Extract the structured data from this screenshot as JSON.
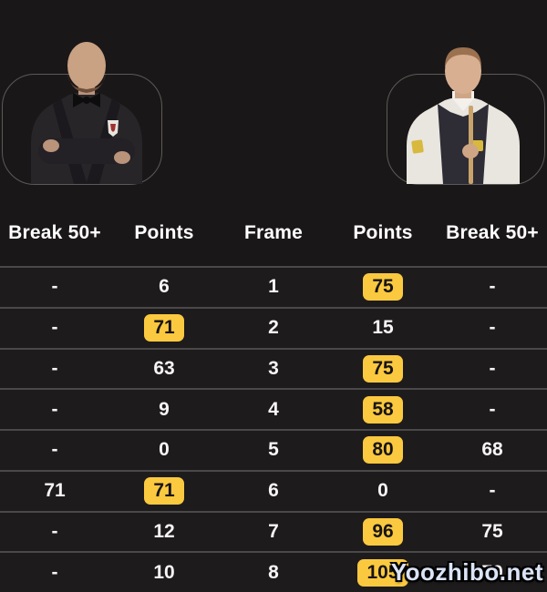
{
  "players": {
    "left_photo_icon": "player-dark-suit-arms-crossed-photo",
    "right_photo_icon": "player-white-shirt-holding-cue-photo"
  },
  "table": {
    "headers": [
      "Break 50+",
      "Points",
      "Frame",
      "Points",
      "Break 50+"
    ],
    "rows": [
      {
        "left_break": "-",
        "left_points": "6",
        "frame": "1",
        "right_points": "75",
        "right_break": "-",
        "winner": "right"
      },
      {
        "left_break": "-",
        "left_points": "71",
        "frame": "2",
        "right_points": "15",
        "right_break": "-",
        "winner": "left"
      },
      {
        "left_break": "-",
        "left_points": "63",
        "frame": "3",
        "right_points": "75",
        "right_break": "-",
        "winner": "right"
      },
      {
        "left_break": "-",
        "left_points": "9",
        "frame": "4",
        "right_points": "58",
        "right_break": "-",
        "winner": "right"
      },
      {
        "left_break": "-",
        "left_points": "0",
        "frame": "5",
        "right_points": "80",
        "right_break": "68",
        "winner": "right"
      },
      {
        "left_break": "71",
        "left_points": "71",
        "frame": "6",
        "right_points": "0",
        "right_break": "-",
        "winner": "left"
      },
      {
        "left_break": "-",
        "left_points": "12",
        "frame": "7",
        "right_points": "96",
        "right_break": "75",
        "winner": "right"
      },
      {
        "left_break": "-",
        "left_points": "10",
        "frame": "8",
        "right_points": "105",
        "right_break": "79",
        "winner": "right"
      }
    ]
  },
  "watermark": {
    "text": "Yoozhibo.net"
  },
  "colors": {
    "background": "#1a1718",
    "row_background": "#1e1b1c",
    "row_separator": "#4b4849",
    "highlight_badge": "#fbc93f",
    "badge_text": "#171415",
    "text": "#f7f5f6"
  }
}
